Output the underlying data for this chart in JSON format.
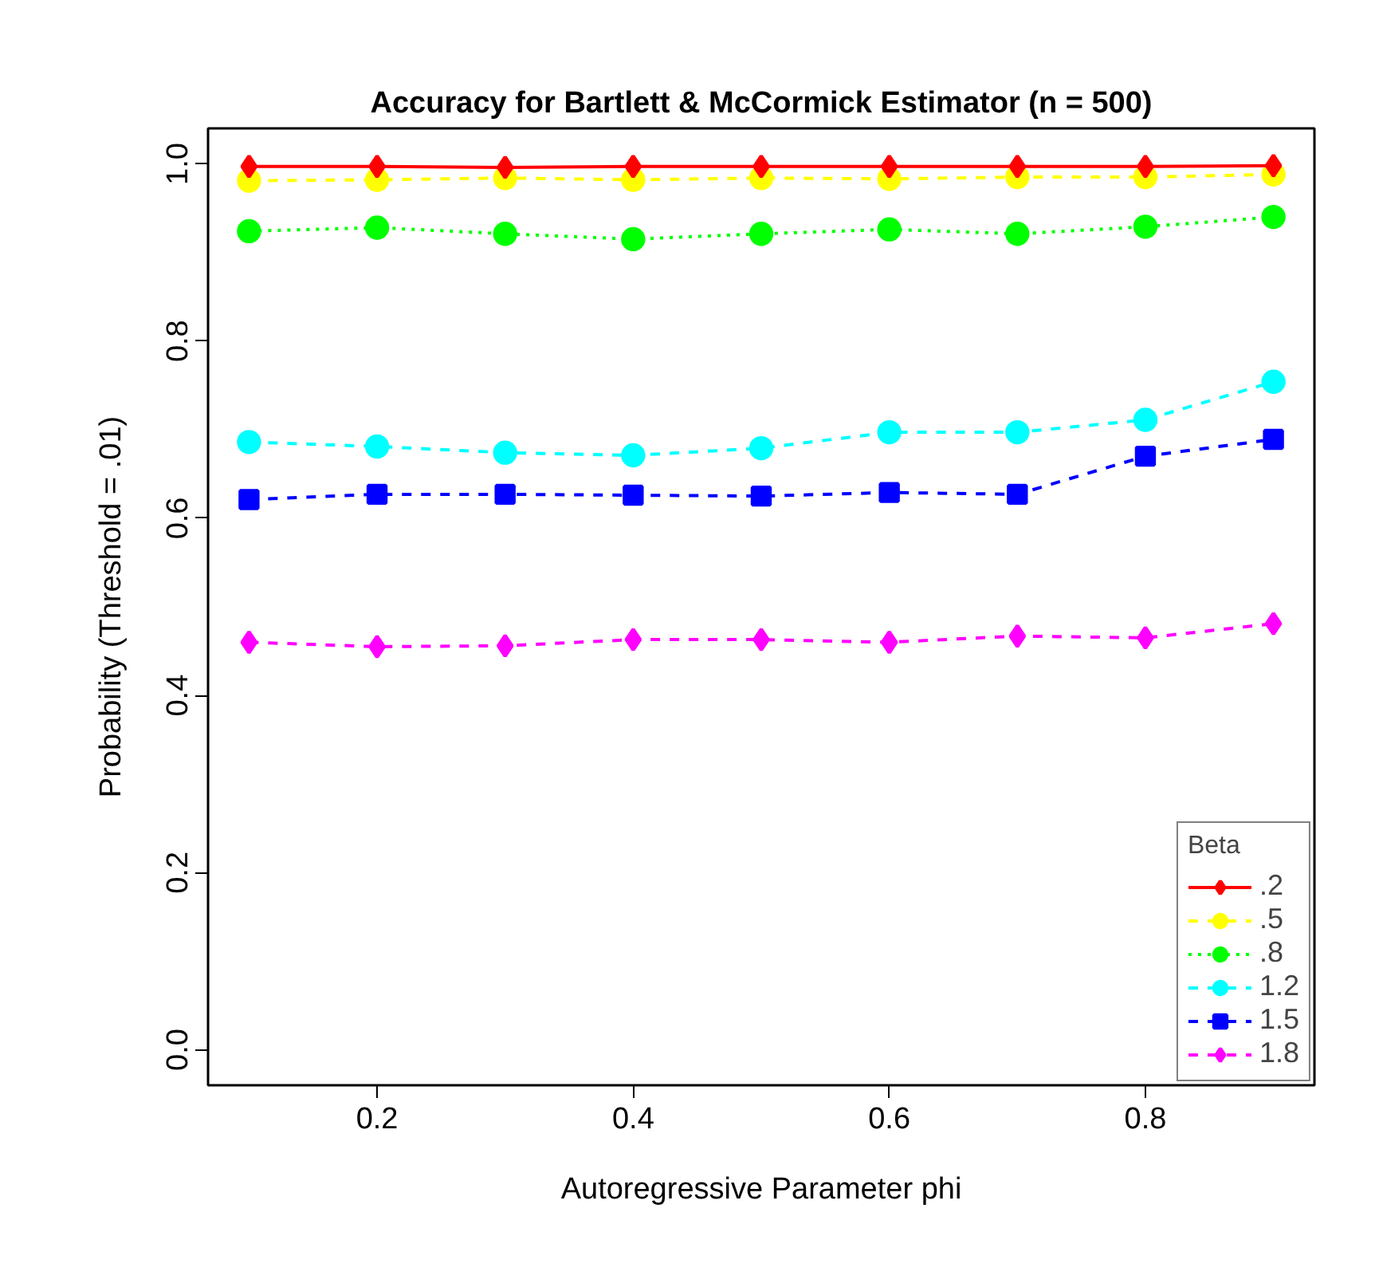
{
  "chart_data": {
    "type": "line",
    "title": "Accuracy for Bartlett & McCormick Estimator (n = 500)",
    "xlabel": "Autoregressive Parameter phi",
    "ylabel": "Probability (Threshold = .01)",
    "x": [
      0.1,
      0.2,
      0.3,
      0.4,
      0.5,
      0.6,
      0.7,
      0.8,
      0.9
    ],
    "xlim": [
      0.068,
      0.932
    ],
    "xticks": [
      0.2,
      0.4,
      0.6,
      0.8
    ],
    "ylim": [
      -0.04,
      1.04
    ],
    "yticks": [
      "0.0",
      0.2,
      0.4,
      0.6,
      0.8,
      "1.0"
    ],
    "grid": false,
    "legend": "bottom right",
    "legend_title": "Beta",
    "series": [
      {
        "name": ".2",
        "color": "#ff0000",
        "marker": "diamond",
        "line_style": "solid",
        "values": [
          0.997,
          0.997,
          0.996,
          0.997,
          0.997,
          0.997,
          0.997,
          0.997,
          0.998
        ]
      },
      {
        "name": ".5",
        "color": "#ffff00",
        "marker": "circle",
        "line_style": "dashed",
        "values": [
          0.981,
          0.982,
          0.984,
          0.982,
          0.984,
          0.983,
          0.985,
          0.985,
          0.988
        ]
      },
      {
        "name": ".8",
        "color": "#00ff00",
        "marker": "circle",
        "line_style": "dotted",
        "values": [
          0.924,
          0.928,
          0.921,
          0.915,
          0.921,
          0.926,
          0.921,
          0.929,
          0.94
        ]
      },
      {
        "name": "1.2",
        "color": "#00ffff",
        "marker": "circle",
        "line_style": "dashed",
        "values": [
          0.686,
          0.681,
          0.674,
          0.671,
          0.679,
          0.697,
          0.697,
          0.711,
          0.754
        ]
      },
      {
        "name": "1.5",
        "color": "#0000ff",
        "marker": "square",
        "line_style": "dashed",
        "values": [
          0.621,
          0.627,
          0.627,
          0.626,
          0.625,
          0.629,
          0.627,
          0.67,
          0.689
        ]
      },
      {
        "name": "1.8",
        "color": "#ff00ff",
        "marker": "diamond",
        "line_style": "dashed",
        "values": [
          0.46,
          0.455,
          0.456,
          0.463,
          0.463,
          0.46,
          0.467,
          0.465,
          0.481
        ]
      }
    ]
  }
}
